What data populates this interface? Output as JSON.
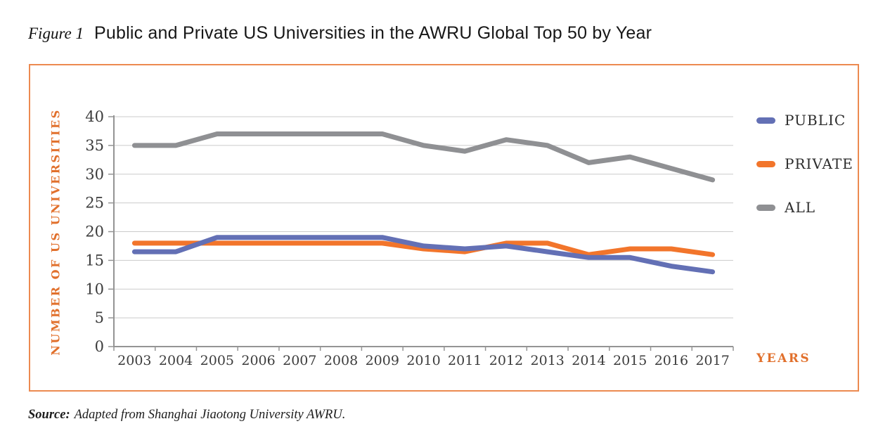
{
  "figure": {
    "label": "Figure 1",
    "title": "Public and Private US Universities in the AWRU Global Top 50 by Year"
  },
  "chart_data": {
    "type": "line",
    "x": [
      2003,
      2004,
      2005,
      2006,
      2007,
      2008,
      2009,
      2010,
      2011,
      2012,
      2013,
      2014,
      2015,
      2016,
      2017
    ],
    "series": [
      {
        "name": "PUBLIC",
        "color": "#6370B5",
        "values": [
          16.5,
          16.5,
          19,
          19,
          19,
          19,
          19,
          17.5,
          17,
          17.5,
          16.5,
          15.5,
          15.5,
          14,
          13
        ]
      },
      {
        "name": "PRIVATE",
        "color": "#F2752B",
        "values": [
          18,
          18,
          18,
          18,
          18,
          18,
          18,
          17,
          16.5,
          18,
          18,
          16,
          17,
          17,
          16
        ]
      },
      {
        "name": "ALL",
        "color": "#8F9093",
        "values": [
          35,
          35,
          37,
          37,
          37,
          37,
          37,
          35,
          34,
          36,
          35,
          32,
          33,
          31,
          29
        ]
      }
    ],
    "xlabel": "YEARS",
    "ylabel": "NUMBER OF US UNIVERSITIES",
    "ylim": [
      0,
      40
    ],
    "ytick_step": 5,
    "grid": true,
    "legend_position": "right",
    "title": "Public and Private US Universities in the AWRU Global Top 50 by Year"
  },
  "source": {
    "prefix": "Source:",
    "text": "Adapted from Shanghai Jiaotong University AWRU."
  },
  "colors": {
    "accent_text": "#E1702C",
    "box_border": "#EC8A50",
    "grid": "#CBCBCB",
    "axis": "#949494",
    "tick_text": "#3C3C3C"
  }
}
